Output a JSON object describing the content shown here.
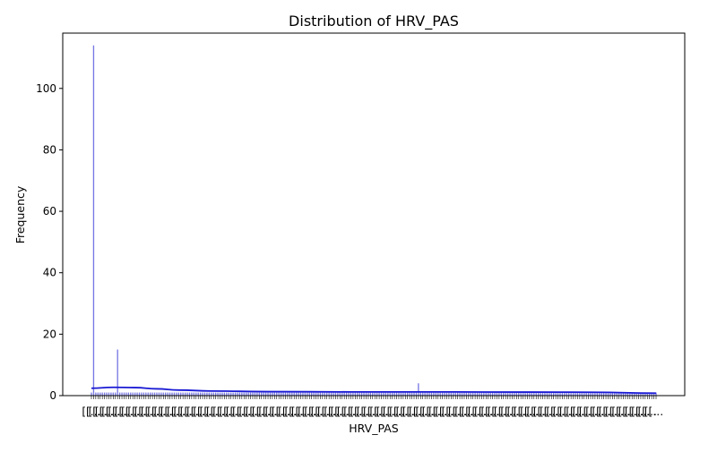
{
  "chart_data": {
    "type": "bar",
    "title": "Distribution of HRV_PAS",
    "xlabel": "HRV_PAS",
    "ylabel": "Frequency",
    "ylim": [
      0,
      118
    ],
    "yticks": [
      0,
      20,
      40,
      60,
      80,
      100
    ],
    "bar_color": "#5555dd",
    "kde_color": "#1a1ad4",
    "category_count": 260,
    "x_tick_labels_note": "[[…",
    "bins": [
      {
        "index": 0,
        "value": 1
      },
      {
        "index": 1,
        "value": 114
      },
      {
        "index": 12,
        "value": 15
      },
      {
        "index": 150,
        "value": 4
      }
    ],
    "baseline_value": 1,
    "kde": [
      {
        "index": 0,
        "value": 2.4
      },
      {
        "index": 10,
        "value": 2.7
      },
      {
        "index": 20,
        "value": 2.6
      },
      {
        "index": 30,
        "value": 2.2
      },
      {
        "index": 40,
        "value": 1.8
      },
      {
        "index": 55,
        "value": 1.5
      },
      {
        "index": 80,
        "value": 1.3
      },
      {
        "index": 120,
        "value": 1.2
      },
      {
        "index": 160,
        "value": 1.2
      },
      {
        "index": 200,
        "value": 1.15
      },
      {
        "index": 230,
        "value": 1.1
      },
      {
        "index": 259,
        "value": 0.8
      }
    ]
  }
}
